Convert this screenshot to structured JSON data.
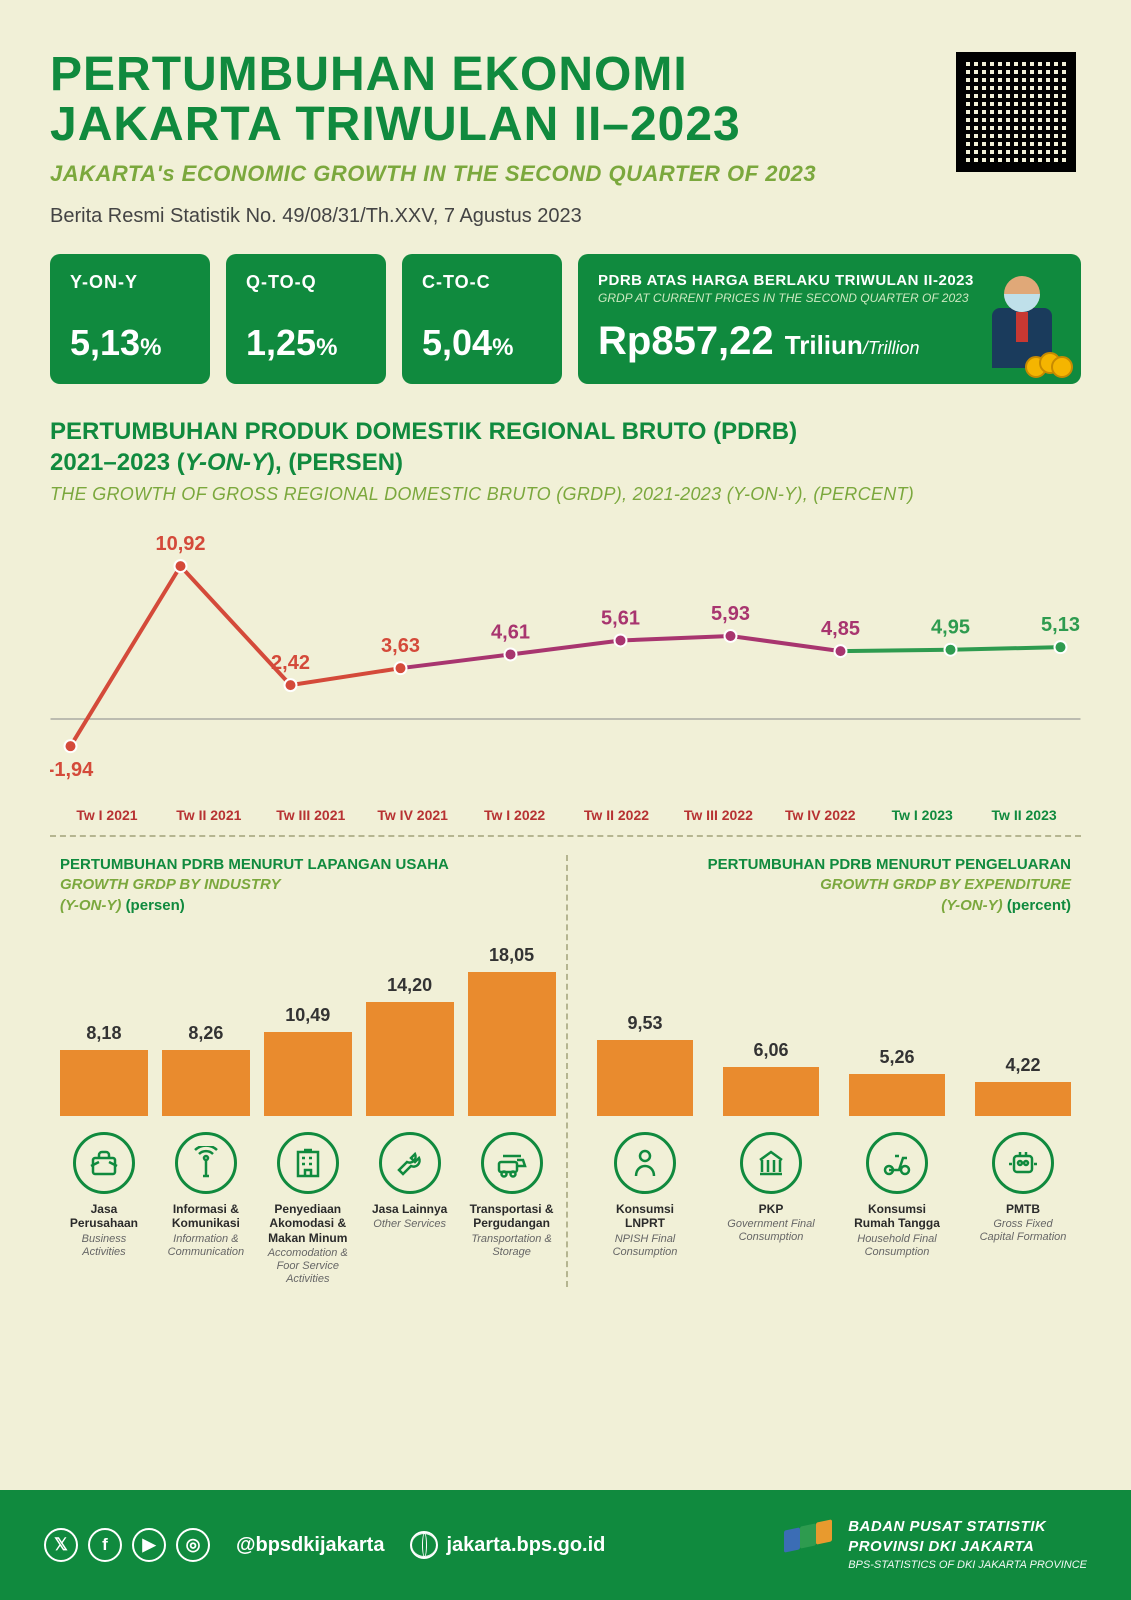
{
  "colors": {
    "bg": "#f1f0d7",
    "green": "#108a3e",
    "olive": "#7ba83d",
    "orange": "#e98b2e",
    "line_red": "#d44a3a",
    "line_purple": "#a8356f",
    "line_green": "#2e9b4f",
    "text": "#333333",
    "label_red": "#b73232"
  },
  "header": {
    "title_line1": "PERTUMBUHAN EKONOMI",
    "title_line2": "JAKARTA TRIWULAN II–2023",
    "subtitle": "JAKARTA's ECONOMIC GROWTH IN THE SECOND QUARTER OF 2023",
    "reference": "Berita Resmi Statistik No. 49/08/31/Th.XXV, 7 Agustus 2023"
  },
  "stats": [
    {
      "label": "Y-ON-Y",
      "value": "5,13",
      "unit": "%"
    },
    {
      "label": "Q-TO-Q",
      "value": "1,25",
      "unit": "%"
    },
    {
      "label": "C-TO-C",
      "value": "5,04",
      "unit": "%"
    }
  ],
  "grdp_box": {
    "title_id": "PDRB ATAS HARGA BERLAKU TRIWULAN II-2023",
    "title_en": "GRDP AT CURRENT PRICES IN THE SECOND QUARTER OF 2023",
    "value": "Rp857,22",
    "unit_id": "Triliun",
    "unit_en": "/Trillion"
  },
  "line_section": {
    "title_l1": "PERTUMBUHAN PRODUK DOMESTIK REGIONAL BRUTO (PDRB)",
    "title_l2_a": "2021–2023 (",
    "title_l2_b": "Y-ON-Y",
    "title_l2_c": "), (PERSEN)",
    "subtitle": "THE GROWTH OF GROSS REGIONAL DOMESTIC BRUTO (GRDP), 2021-2023 (Y-ON-Y), (PERCENT)"
  },
  "line_chart": {
    "type": "line",
    "ylim": [
      -3,
      12
    ],
    "points": [
      {
        "x": "Tw I 2021",
        "v": -1.94,
        "label": "-1,94",
        "color": "#d44a3a",
        "lcolor": "#b73232",
        "above": false
      },
      {
        "x": "Tw II 2021",
        "v": 10.92,
        "label": "10,92",
        "color": "#d44a3a",
        "lcolor": "#b73232",
        "above": true
      },
      {
        "x": "Tw III 2021",
        "v": 2.42,
        "label": "2,42",
        "color": "#d44a3a",
        "lcolor": "#b73232",
        "above": true
      },
      {
        "x": "Tw IV 2021",
        "v": 3.63,
        "label": "3,63",
        "color": "#d44a3a",
        "lcolor": "#b73232",
        "above": true
      },
      {
        "x": "Tw I 2022",
        "v": 4.61,
        "label": "4,61",
        "color": "#a8356f",
        "lcolor": "#b73232",
        "above": true
      },
      {
        "x": "Tw II 2022",
        "v": 5.61,
        "label": "5,61",
        "color": "#a8356f",
        "lcolor": "#b73232",
        "above": true
      },
      {
        "x": "Tw III 2022",
        "v": 5.93,
        "label": "5,93",
        "color": "#a8356f",
        "lcolor": "#b73232",
        "above": true
      },
      {
        "x": "Tw IV 2022",
        "v": 4.85,
        "label": "4,85",
        "color": "#a8356f",
        "lcolor": "#b73232",
        "above": true
      },
      {
        "x": "Tw I 2023",
        "v": 4.95,
        "label": "4,95",
        "color": "#2e9b4f",
        "lcolor": "#108a3e",
        "above": true
      },
      {
        "x": "Tw II 2023",
        "v": 5.13,
        "label": "5,13",
        "color": "#2e9b4f",
        "lcolor": "#108a3e",
        "above": true,
        "bold": true
      }
    ],
    "segments": [
      {
        "from": 0,
        "to": 3,
        "color": "#d44a3a"
      },
      {
        "from": 3,
        "to": 7,
        "color": "#a8356f"
      },
      {
        "from": 7,
        "to": 9,
        "color": "#2e9b4f"
      }
    ]
  },
  "industry": {
    "title": "PERTUMBUHAN PDRB MENURUT LAPANGAN USAHA",
    "sub1": "GROWTH GRDP BY INDUSTRY",
    "sub2": "(Y-ON-Y)",
    "sub3": "(persen)",
    "max": 20,
    "items": [
      {
        "v": 8.18,
        "label": "8,18",
        "name_id": "Jasa Perusahaan",
        "name_en": "Business Activities",
        "icon": "briefcase"
      },
      {
        "v": 8.26,
        "label": "8,26",
        "name_id": "Informasi & Komunikasi",
        "name_en": "Information & Communication",
        "icon": "antenna"
      },
      {
        "v": 10.49,
        "label": "10,49",
        "name_id": "Penyediaan Akomodasi & Makan Minum",
        "name_en": "Accomodation & Foor Service Activities",
        "icon": "hotel"
      },
      {
        "v": 14.2,
        "label": "14,20",
        "name_id": "Jasa Lainnya",
        "name_en": "Other Services",
        "icon": "wrench"
      },
      {
        "v": 18.05,
        "label": "18,05",
        "name_id": "Transportasi & Pergudangan",
        "name_en": "Transportation & Storage",
        "icon": "transport"
      }
    ]
  },
  "expenditure": {
    "title": "PERTUMBUHAN PDRB MENURUT PENGELUARAN",
    "sub1": "GROWTH GRDP BY EXPENDITURE",
    "sub2": "(Y-ON-Y)",
    "sub3": "(percent)",
    "max": 20,
    "items": [
      {
        "v": 9.53,
        "label": "9,53",
        "name_id": "Konsumsi LNPRT",
        "name_en": "NPISH Final Consumption",
        "icon": "person"
      },
      {
        "v": 6.06,
        "label": "6,06",
        "name_id": "PKP",
        "name_en": "Government Final Consumption",
        "icon": "gov"
      },
      {
        "v": 5.26,
        "label": "5,26",
        "name_id": "Konsumsi Rumah Tangga",
        "name_en": "Household Final Consumption",
        "icon": "scooter"
      },
      {
        "v": 4.22,
        "label": "4,22",
        "name_id": "PMTB",
        "name_en": "Gross Fixed Capital Formation",
        "icon": "robot"
      }
    ]
  },
  "footer": {
    "handle": "@bpsdkijakarta",
    "url": "jakarta.bps.go.id",
    "org1": "BADAN PUSAT STATISTIK",
    "org2": "PROVINSI DKI JAKARTA",
    "org3": "BPS-STATISTICS OF DKI JAKARTA PROVINCE"
  }
}
